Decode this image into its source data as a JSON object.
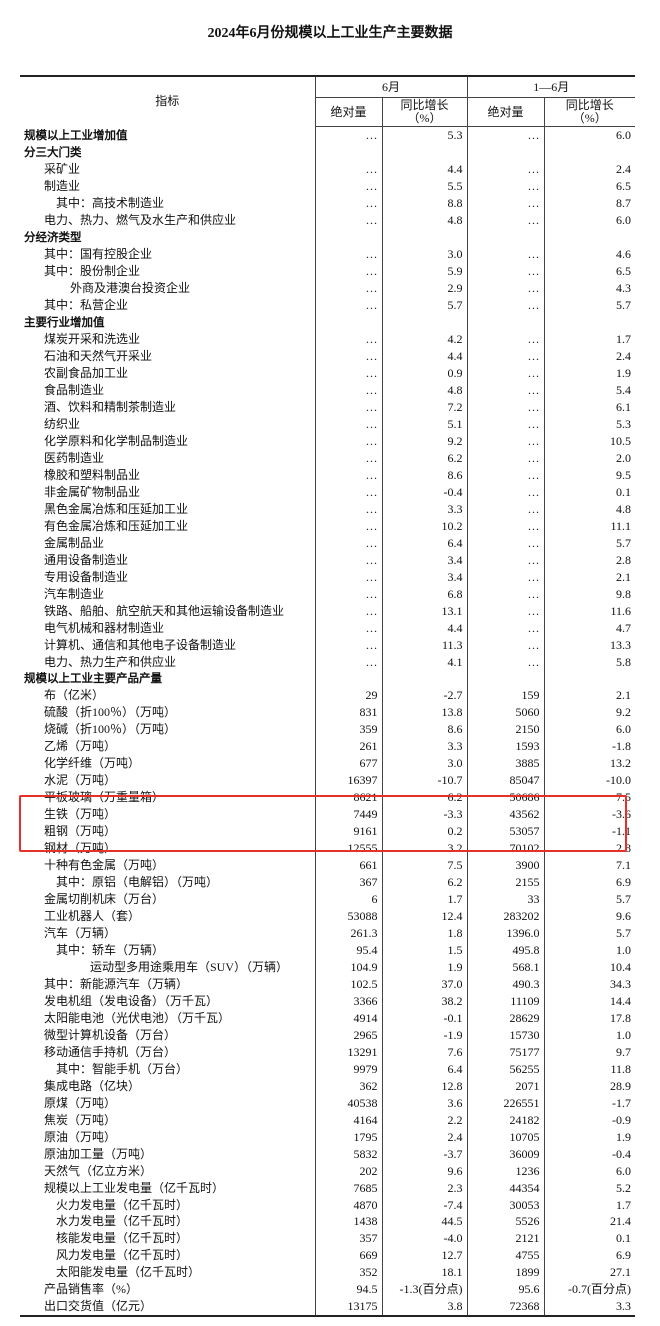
{
  "title": "2024年6月份规模以上工业生产主要数据",
  "header": {
    "indicator": "指标",
    "group1": "6月",
    "group2": "1—6月",
    "absolute": "绝对量",
    "growth": "同比增长",
    "growth_unit": "（%）"
  },
  "highlight_color": "#e8302a",
  "rows": [
    {
      "name": "规模以上工业增加值",
      "indent": 0,
      "bold": true,
      "a1": "…",
      "g1": "5.3",
      "a2": "…",
      "g2": "6.0"
    },
    {
      "name": "分三大门类",
      "indent": 0,
      "bold": true,
      "a1": "",
      "g1": "",
      "a2": "",
      "g2": ""
    },
    {
      "name": "采矿业",
      "indent": 1,
      "a1": "…",
      "g1": "4.4",
      "a2": "…",
      "g2": "2.4"
    },
    {
      "name": "制造业",
      "indent": 1,
      "a1": "…",
      "g1": "5.5",
      "a2": "…",
      "g2": "6.5"
    },
    {
      "name": "其中：高技术制造业",
      "indent": 2,
      "a1": "…",
      "g1": "8.8",
      "a2": "…",
      "g2": "8.7"
    },
    {
      "name": "电力、热力、燃气及水生产和供应业",
      "indent": 1,
      "a1": "…",
      "g1": "4.8",
      "a2": "…",
      "g2": "6.0"
    },
    {
      "name": "分经济类型",
      "indent": 0,
      "bold": true,
      "a1": "",
      "g1": "",
      "a2": "",
      "g2": ""
    },
    {
      "name": "其中：国有控股企业",
      "indent": 1,
      "a1": "…",
      "g1": "3.0",
      "a2": "…",
      "g2": "4.6"
    },
    {
      "name": "其中：股份制企业",
      "indent": 1,
      "a1": "…",
      "g1": "5.9",
      "a2": "…",
      "g2": "6.5"
    },
    {
      "name": "外商及港澳台投资企业",
      "indent": 3,
      "a1": "…",
      "g1": "2.9",
      "a2": "…",
      "g2": "4.3"
    },
    {
      "name": "其中：私营企业",
      "indent": 1,
      "a1": "…",
      "g1": "5.7",
      "a2": "…",
      "g2": "5.7"
    },
    {
      "name": "主要行业增加值",
      "indent": 0,
      "bold": true,
      "a1": "",
      "g1": "",
      "a2": "",
      "g2": ""
    },
    {
      "name": "煤炭开采和洗选业",
      "indent": 1,
      "a1": "…",
      "g1": "4.2",
      "a2": "…",
      "g2": "1.7"
    },
    {
      "name": "石油和天然气开采业",
      "indent": 1,
      "a1": "…",
      "g1": "4.4",
      "a2": "…",
      "g2": "2.4"
    },
    {
      "name": "农副食品加工业",
      "indent": 1,
      "a1": "…",
      "g1": "0.9",
      "a2": "…",
      "g2": "1.9"
    },
    {
      "name": "食品制造业",
      "indent": 1,
      "a1": "…",
      "g1": "4.8",
      "a2": "…",
      "g2": "5.4"
    },
    {
      "name": "酒、饮料和精制茶制造业",
      "indent": 1,
      "a1": "…",
      "g1": "7.2",
      "a2": "…",
      "g2": "6.1"
    },
    {
      "name": "纺织业",
      "indent": 1,
      "a1": "…",
      "g1": "5.1",
      "a2": "…",
      "g2": "5.3"
    },
    {
      "name": "化学原料和化学制品制造业",
      "indent": 1,
      "a1": "…",
      "g1": "9.2",
      "a2": "…",
      "g2": "10.5"
    },
    {
      "name": "医药制造业",
      "indent": 1,
      "a1": "…",
      "g1": "6.2",
      "a2": "…",
      "g2": "2.0"
    },
    {
      "name": "橡胶和塑料制品业",
      "indent": 1,
      "a1": "…",
      "g1": "8.6",
      "a2": "…",
      "g2": "9.5"
    },
    {
      "name": "非金属矿物制品业",
      "indent": 1,
      "a1": "…",
      "g1": "-0.4",
      "a2": "…",
      "g2": "0.1"
    },
    {
      "name": "黑色金属冶炼和压延加工业",
      "indent": 1,
      "a1": "…",
      "g1": "3.3",
      "a2": "…",
      "g2": "4.8"
    },
    {
      "name": "有色金属冶炼和压延加工业",
      "indent": 1,
      "a1": "…",
      "g1": "10.2",
      "a2": "…",
      "g2": "11.1"
    },
    {
      "name": "金属制品业",
      "indent": 1,
      "a1": "…",
      "g1": "6.4",
      "a2": "…",
      "g2": "5.7"
    },
    {
      "name": "通用设备制造业",
      "indent": 1,
      "a1": "…",
      "g1": "3.4",
      "a2": "…",
      "g2": "2.8"
    },
    {
      "name": "专用设备制造业",
      "indent": 1,
      "a1": "…",
      "g1": "3.4",
      "a2": "…",
      "g2": "2.1"
    },
    {
      "name": "汽车制造业",
      "indent": 1,
      "a1": "…",
      "g1": "6.8",
      "a2": "…",
      "g2": "9.8"
    },
    {
      "name": "铁路、船舶、航空航天和其他运输设备制造业",
      "indent": 1,
      "a1": "…",
      "g1": "13.1",
      "a2": "…",
      "g2": "11.6"
    },
    {
      "name": "电气机械和器材制造业",
      "indent": 1,
      "a1": "…",
      "g1": "4.4",
      "a2": "…",
      "g2": "4.7"
    },
    {
      "name": "计算机、通信和其他电子设备制造业",
      "indent": 1,
      "a1": "…",
      "g1": "11.3",
      "a2": "…",
      "g2": "13.3"
    },
    {
      "name": "电力、热力生产和供应业",
      "indent": 1,
      "a1": "…",
      "g1": "4.1",
      "a2": "…",
      "g2": "5.8"
    },
    {
      "name": "规模以上工业主要产品产量",
      "indent": 0,
      "bold": true,
      "a1": "",
      "g1": "",
      "a2": "",
      "g2": ""
    },
    {
      "name": "布（亿米）",
      "indent": 1,
      "a1": "29",
      "g1": "-2.7",
      "a2": "159",
      "g2": "2.1"
    },
    {
      "name": "硫酸（折100％）（万吨）",
      "indent": 1,
      "a1": "831",
      "g1": "13.8",
      "a2": "5060",
      "g2": "9.2"
    },
    {
      "name": "烧碱（折100％）（万吨）",
      "indent": 1,
      "a1": "359",
      "g1": "8.6",
      "a2": "2150",
      "g2": "6.0"
    },
    {
      "name": "乙烯（万吨）",
      "indent": 1,
      "a1": "261",
      "g1": "3.3",
      "a2": "1593",
      "g2": "-1.8"
    },
    {
      "name": "化学纤维（万吨）",
      "indent": 1,
      "a1": "677",
      "g1": "3.0",
      "a2": "3885",
      "g2": "13.2"
    },
    {
      "name": "水泥（万吨）",
      "indent": 1,
      "a1": "16397",
      "g1": "-10.7",
      "a2": "85047",
      "g2": "-10.0"
    },
    {
      "name": "平板玻璃（万重量箱）",
      "indent": 1,
      "a1": "8621",
      "g1": "6.2",
      "a2": "50686",
      "g2": "7.5"
    },
    {
      "name": "生铁（万吨）",
      "indent": 1,
      "a1": "7449",
      "g1": "-3.3",
      "a2": "43562",
      "g2": "-3.6"
    },
    {
      "name": "粗钢（万吨）",
      "indent": 1,
      "a1": "9161",
      "g1": "0.2",
      "a2": "53057",
      "g2": "-1.1"
    },
    {
      "name": "钢材（万吨）",
      "indent": 1,
      "a1": "12555",
      "g1": "3.2",
      "a2": "70102",
      "g2": "2.8"
    },
    {
      "name": "十种有色金属（万吨）",
      "indent": 1,
      "a1": "661",
      "g1": "7.5",
      "a2": "3900",
      "g2": "7.1"
    },
    {
      "name": "其中：原铝（电解铝）（万吨）",
      "indent": 2,
      "a1": "367",
      "g1": "6.2",
      "a2": "2155",
      "g2": "6.9"
    },
    {
      "name": "金属切削机床（万台）",
      "indent": 1,
      "a1": "6",
      "g1": "1.7",
      "a2": "33",
      "g2": "5.7"
    },
    {
      "name": "工业机器人（套）",
      "indent": 1,
      "a1": "53088",
      "g1": "12.4",
      "a2": "283202",
      "g2": "9.6"
    },
    {
      "name": "汽车（万辆）",
      "indent": 1,
      "a1": "261.3",
      "g1": "1.8",
      "a2": "1396.0",
      "g2": "5.7"
    },
    {
      "name": "其中：轿车（万辆）",
      "indent": 2,
      "a1": "95.4",
      "g1": "1.5",
      "a2": "495.8",
      "g2": "1.0"
    },
    {
      "name": "运动型多用途乘用车（SUV）（万辆）",
      "indent": 4,
      "a1": "104.9",
      "g1": "1.9",
      "a2": "568.1",
      "g2": "10.4"
    },
    {
      "name": "其中：新能源汽车（万辆）",
      "indent": 1,
      "a1": "102.5",
      "g1": "37.0",
      "a2": "490.3",
      "g2": "34.3"
    },
    {
      "name": "发电机组（发电设备）（万千瓦）",
      "indent": 1,
      "a1": "3366",
      "g1": "38.2",
      "a2": "11109",
      "g2": "14.4"
    },
    {
      "name": "太阳能电池（光伏电池）（万千瓦）",
      "indent": 1,
      "a1": "4914",
      "g1": "-0.1",
      "a2": "28629",
      "g2": "17.8"
    },
    {
      "name": "微型计算机设备（万台）",
      "indent": 1,
      "a1": "2965",
      "g1": "-1.9",
      "a2": "15730",
      "g2": "1.0"
    },
    {
      "name": "移动通信手持机（万台）",
      "indent": 1,
      "a1": "13291",
      "g1": "7.6",
      "a2": "75177",
      "g2": "9.7"
    },
    {
      "name": "其中：智能手机（万台）",
      "indent": 2,
      "a1": "9979",
      "g1": "6.4",
      "a2": "56255",
      "g2": "11.8"
    },
    {
      "name": "集成电路（亿块）",
      "indent": 1,
      "a1": "362",
      "g1": "12.8",
      "a2": "2071",
      "g2": "28.9"
    },
    {
      "name": "原煤（万吨）",
      "indent": 1,
      "a1": "40538",
      "g1": "3.6",
      "a2": "226551",
      "g2": "-1.7"
    },
    {
      "name": "焦炭（万吨）",
      "indent": 1,
      "a1": "4164",
      "g1": "2.2",
      "a2": "24182",
      "g2": "-0.9"
    },
    {
      "name": "原油（万吨）",
      "indent": 1,
      "a1": "1795",
      "g1": "2.4",
      "a2": "10705",
      "g2": "1.9"
    },
    {
      "name": "原油加工量（万吨）",
      "indent": 1,
      "a1": "5832",
      "g1": "-3.7",
      "a2": "36009",
      "g2": "-0.4"
    },
    {
      "name": "天然气（亿立方米）",
      "indent": 1,
      "a1": "202",
      "g1": "9.6",
      "a2": "1236",
      "g2": "6.0"
    },
    {
      "name": "规模以上工业发电量（亿千瓦时）",
      "indent": 1,
      "a1": "7685",
      "g1": "2.3",
      "a2": "44354",
      "g2": "5.2"
    },
    {
      "name": "火力发电量（亿千瓦时）",
      "indent": 2,
      "a1": "4870",
      "g1": "-7.4",
      "a2": "30053",
      "g2": "1.7"
    },
    {
      "name": "水力发电量（亿千瓦时）",
      "indent": 2,
      "a1": "1438",
      "g1": "44.5",
      "a2": "5526",
      "g2": "21.4"
    },
    {
      "name": "核能发电量（亿千瓦时）",
      "indent": 2,
      "a1": "357",
      "g1": "-4.0",
      "a2": "2121",
      "g2": "0.1"
    },
    {
      "name": "风力发电量（亿千瓦时）",
      "indent": 2,
      "a1": "669",
      "g1": "12.7",
      "a2": "4755",
      "g2": "6.9"
    },
    {
      "name": "太阳能发电量（亿千瓦时）",
      "indent": 2,
      "a1": "352",
      "g1": "18.1",
      "a2": "1899",
      "g2": "27.1"
    },
    {
      "name": "产品销售率（%）",
      "indent": 1,
      "a1": "94.5",
      "g1": "-1.3(百分点)",
      "a2": "95.6",
      "g2": "-0.7(百分点)"
    },
    {
      "name": "出口交货值（亿元）",
      "indent": 1,
      "a1": "13175",
      "g1": "3.8",
      "a2": "72368",
      "g2": "3.3"
    }
  ]
}
